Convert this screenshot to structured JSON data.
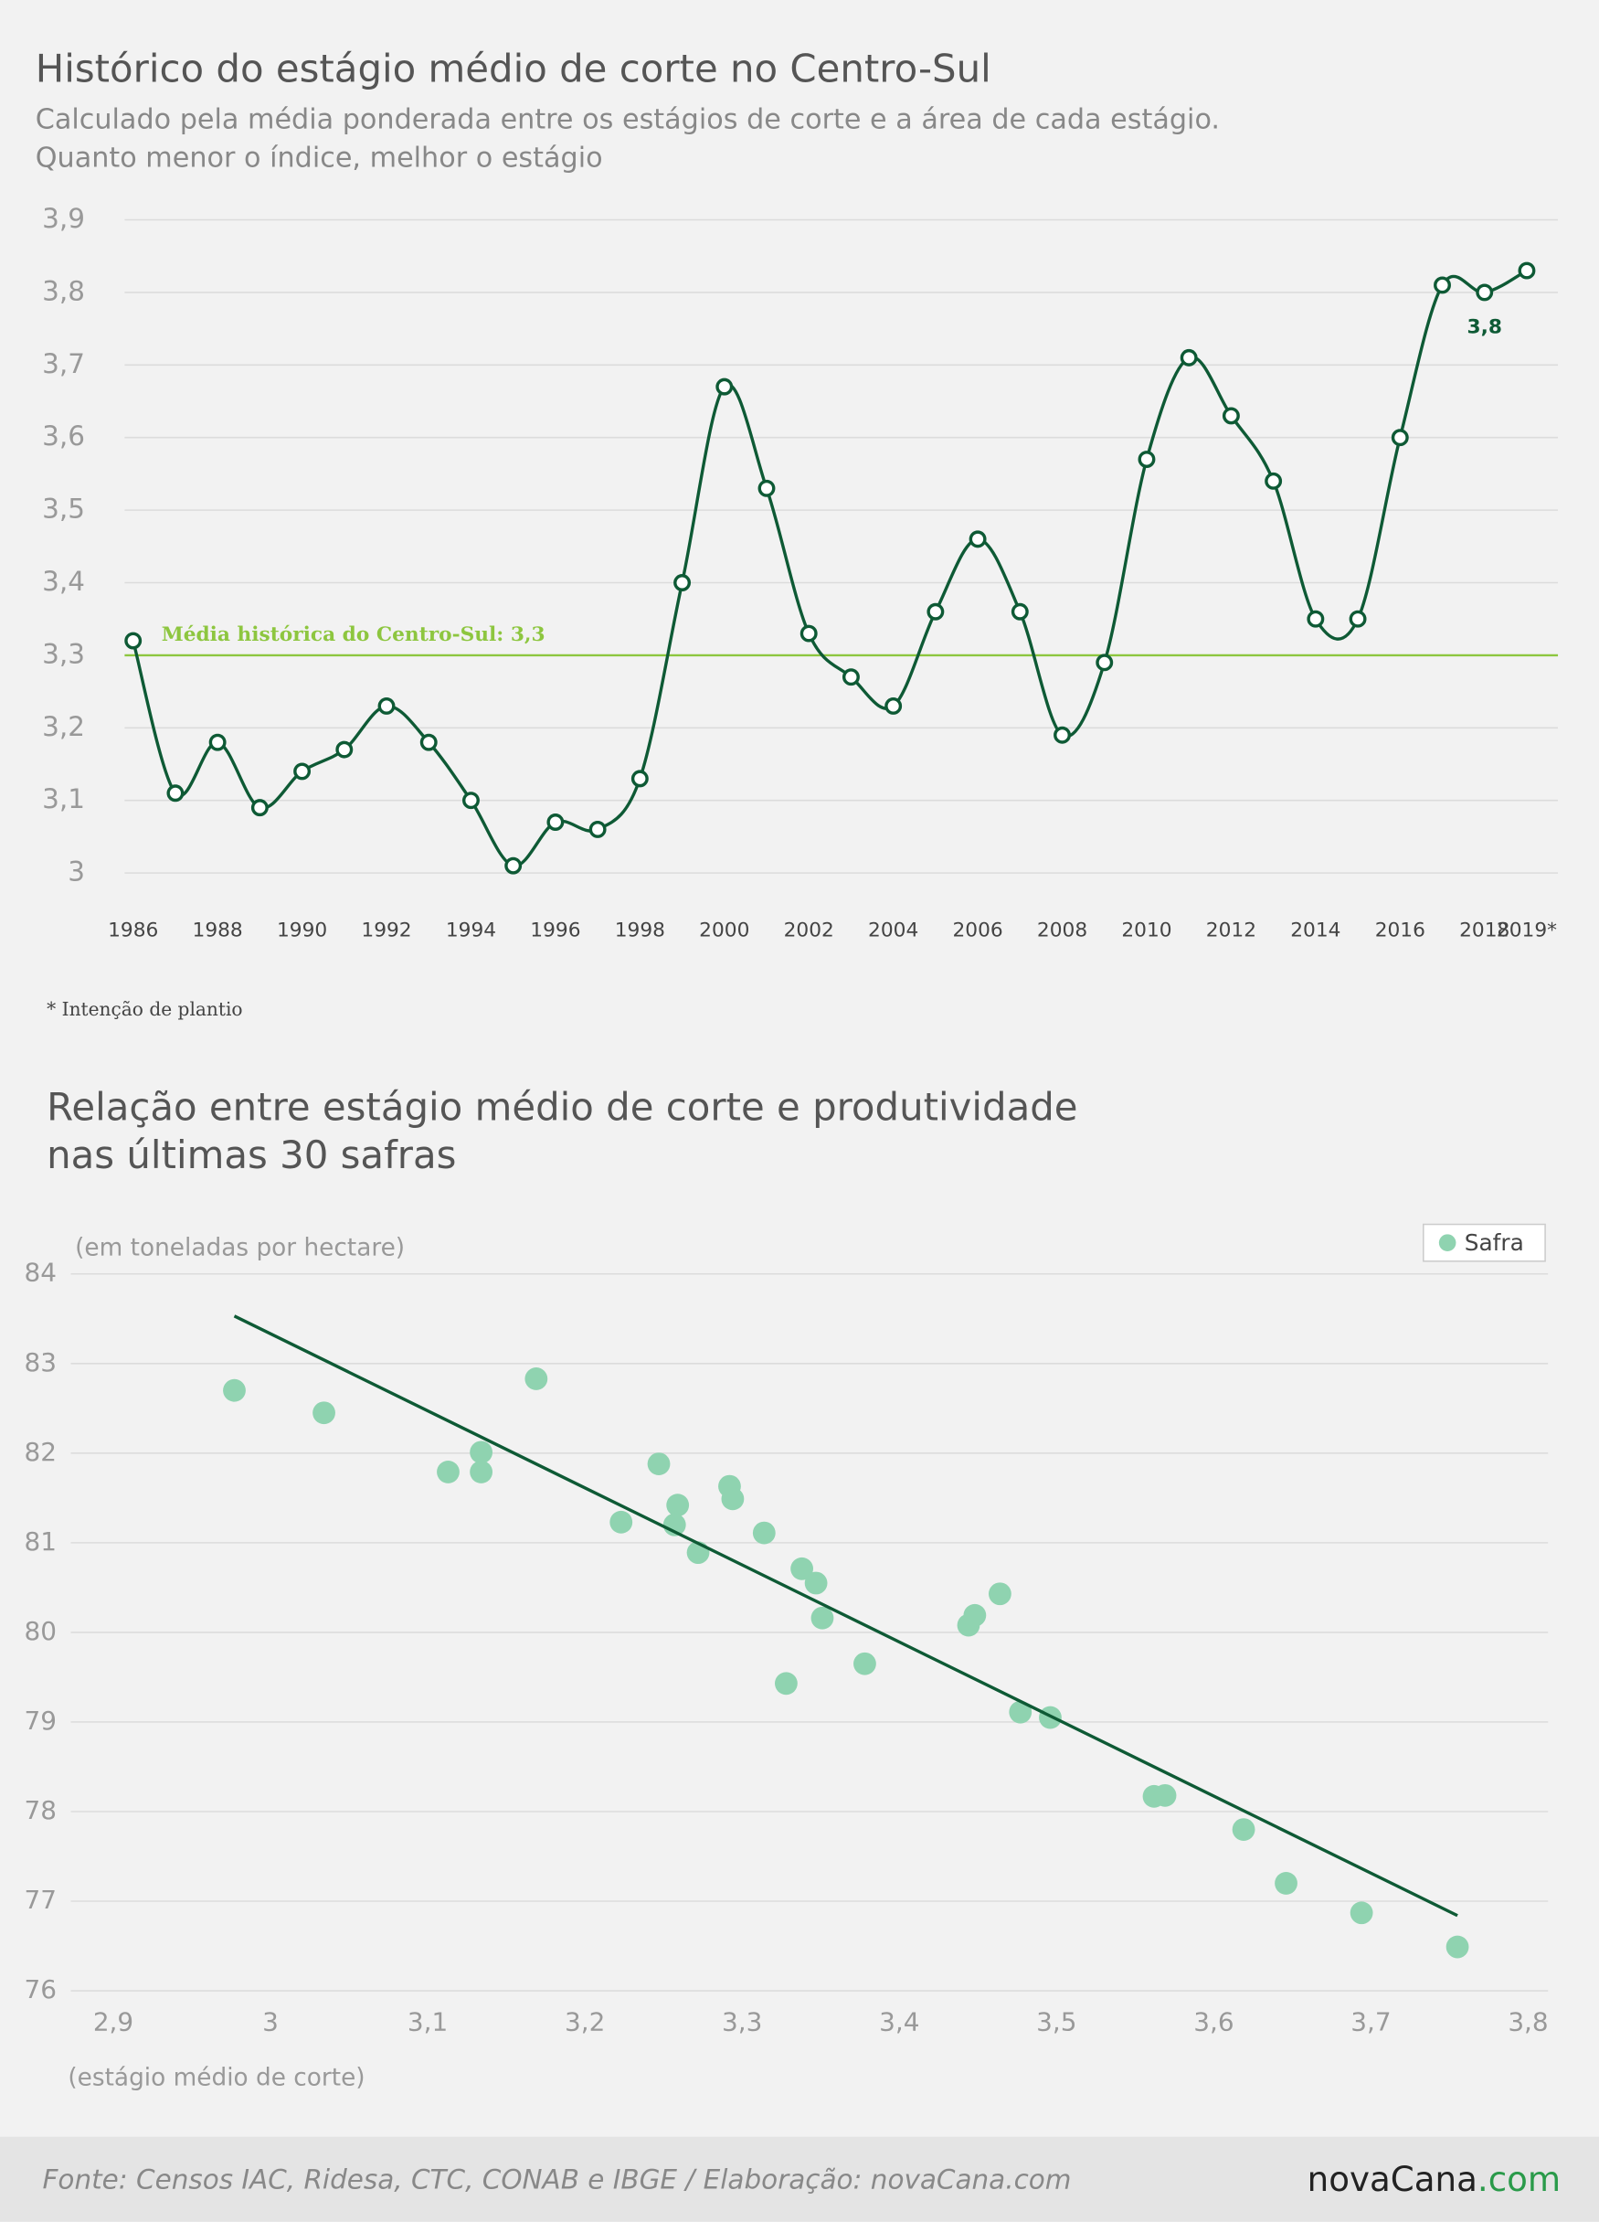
{
  "chart_data": [
    {
      "type": "line",
      "title": "Histórico do estágio médio de corte no Centro-Sul",
      "subtitle": [
        "Calculado pela média ponderada entre os estágios de corte e a área de cada estágio.",
        "Quanto menor o índice, melhor o estágio"
      ],
      "categories": [
        "1986",
        null,
        "1988",
        null,
        "1990",
        null,
        "1992",
        null,
        "1994",
        null,
        "1996",
        null,
        "1998",
        null,
        "2000",
        null,
        "2002",
        null,
        "2004",
        null,
        "2006",
        null,
        "2008",
        null,
        "2010",
        null,
        "2012",
        null,
        "2014",
        null,
        "2016",
        null,
        "2018",
        "2019*"
      ],
      "series": [
        {
          "color": "#0e5a35",
          "values": [
            3.32,
            3.11,
            3.18,
            3.09,
            3.14,
            3.17,
            3.23,
            3.18,
            3.1,
            3.01,
            3.07,
            3.06,
            3.13,
            3.4,
            3.67,
            3.53,
            3.33,
            3.27,
            3.23,
            3.36,
            3.46,
            3.36,
            3.19,
            3.29,
            3.57,
            3.71,
            3.63,
            3.54,
            3.35,
            3.35,
            3.6,
            3.81,
            3.8,
            3.83
          ],
          "value_labels": [
            null,
            null,
            null,
            null,
            null,
            null,
            null,
            null,
            null,
            null,
            null,
            null,
            null,
            null,
            null,
            null,
            null,
            null,
            null,
            null,
            null,
            null,
            null,
            null,
            null,
            null,
            null,
            null,
            null,
            null,
            null,
            null,
            "3,8",
            null
          ]
        }
      ],
      "ylim": [
        3,
        3.9
      ],
      "yticks": [
        3,
        {
          "value": 3.1,
          "label": "3,1"
        },
        {
          "value": 3.2,
          "label": "3,2"
        },
        {
          "value": 3.3,
          "label": "3,3"
        },
        {
          "value": 3.4,
          "label": "3,4"
        },
        {
          "value": 3.5,
          "label": "3,5"
        },
        {
          "value": 3.6,
          "label": "3,6"
        },
        {
          "value": 3.7,
          "label": "3,7"
        },
        {
          "value": 3.8,
          "label": "3,8"
        },
        {
          "value": 3.9,
          "label": "3,9"
        }
      ],
      "grid": true,
      "reference_line": {
        "value": 3.3,
        "label": "Média histórica do Centro-Sul: 3,3",
        "color": "#8dc63f"
      },
      "footnote": "* Intenção de plantio"
    },
    {
      "type": "scatter",
      "title": [
        "Relação entre estágio médio de corte e produtividade",
        "nas últimas 30 safras"
      ],
      "y_label": "(em toneladas por hectare)",
      "x_label": "(estágio médio de corte)",
      "series": [
        {
          "name": "Safra",
          "color": "#8fd3b0",
          "x": [
            2.977,
            3.034,
            3.113,
            3.134,
            3.134,
            3.169,
            3.223,
            3.247,
            3.259,
            3.257,
            3.272,
            3.292,
            3.294,
            3.314,
            3.338,
            3.347,
            3.351,
            3.328,
            3.378,
            3.444,
            3.448,
            3.464,
            3.477,
            3.496,
            3.562,
            3.569,
            3.619,
            3.646,
            3.694,
            3.755
          ],
          "values": [
            82.7,
            82.45,
            81.79,
            82.01,
            81.79,
            82.83,
            81.23,
            81.88,
            81.42,
            81.2,
            80.89,
            81.63,
            81.49,
            81.11,
            80.71,
            80.55,
            80.16,
            79.43,
            79.65,
            80.08,
            80.19,
            80.43,
            79.11,
            79.05,
            78.17,
            78.18,
            77.8,
            77.2,
            76.87,
            76.49
          ]
        }
      ],
      "trendline": {
        "color": "#0e5a35",
        "x": [
          2.977,
          3.755
        ],
        "values": [
          83.53,
          76.84
        ]
      },
      "xlim": [
        2.9,
        3.8
      ],
      "xticks": [
        {
          "value": 2.9,
          "label": "2,9"
        },
        3,
        {
          "value": 3.1,
          "label": "3,1"
        },
        {
          "value": 3.2,
          "label": "3,2"
        },
        {
          "value": 3.3,
          "label": "3,3"
        },
        {
          "value": 3.4,
          "label": "3,4"
        },
        {
          "value": 3.5,
          "label": "3,5"
        },
        {
          "value": 3.6,
          "label": "3,6"
        },
        {
          "value": 3.7,
          "label": "3,7"
        },
        {
          "value": 3.8,
          "label": "3,8"
        }
      ],
      "ylim": [
        76,
        84
      ],
      "yticks": [
        76,
        77,
        78,
        79,
        80,
        81,
        82,
        83,
        84
      ],
      "grid": true,
      "legend": "top-right"
    }
  ],
  "footer": {
    "source": "Fonte: Censos IAC, Ridesa, CTC, CONAB e IBGE / Elaboração: novaCana.com",
    "logo": "novaCana",
    "logo_suffix": ".com"
  }
}
